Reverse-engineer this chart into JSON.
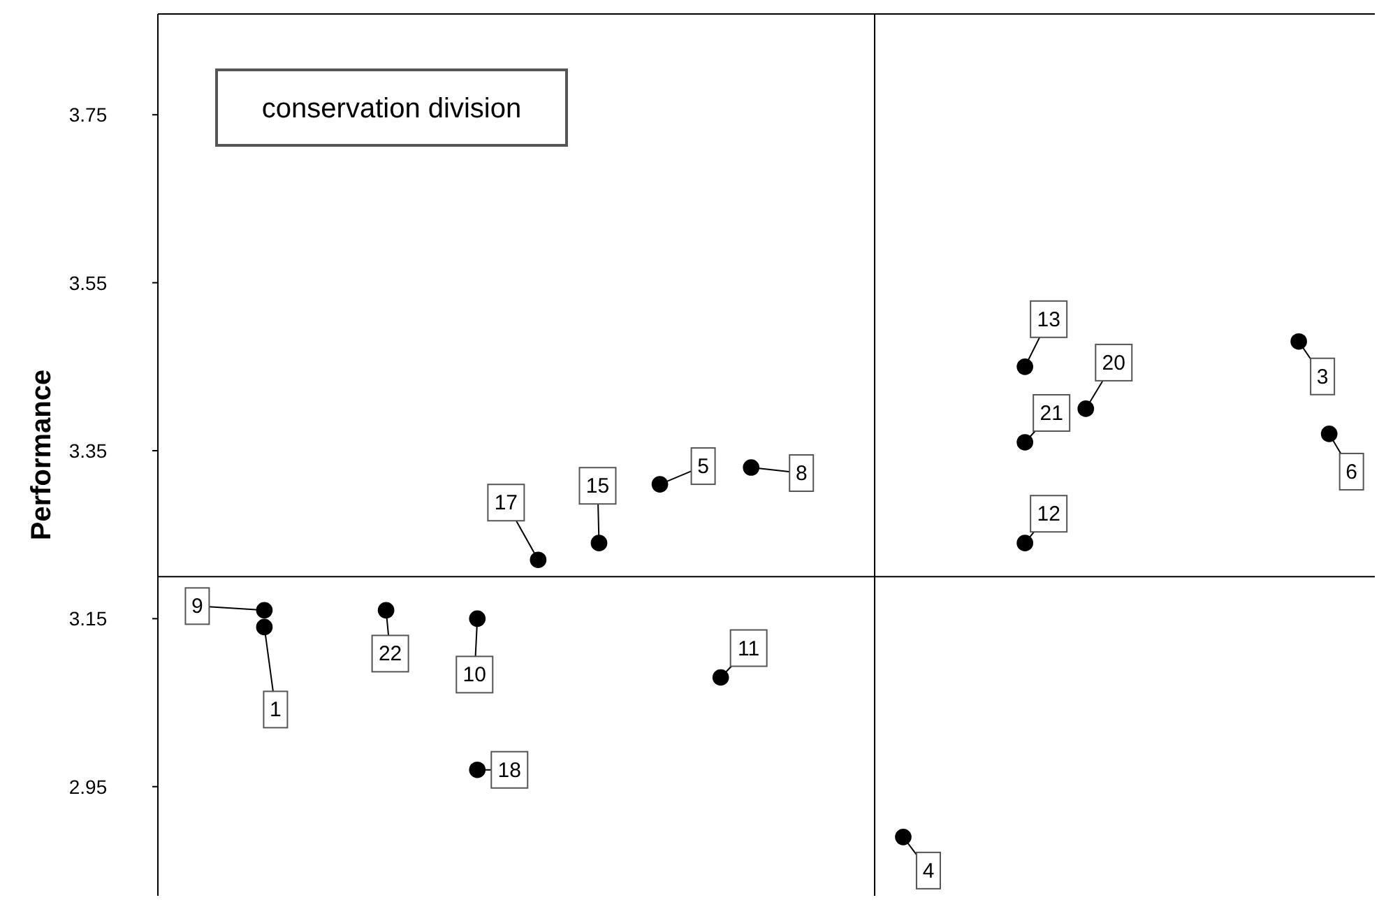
{
  "chart_data": {
    "type": "scatter",
    "ylabel": "Performance",
    "categories": [
      null,
      null,
      null,
      null,
      null,
      null,
      null,
      null,
      null,
      null,
      null,
      null,
      null,
      null,
      null,
      null,
      null,
      null,
      null,
      null,
      null,
      null,
      null,
      null,
      null,
      null,
      null,
      null,
      null,
      null,
      null,
      null,
      null,
      null,
      null,
      null,
      null,
      null,
      null,
      null
    ],
    "ylim": [
      2.82,
      3.87
    ],
    "yticks": [
      2.95,
      3.15,
      3.35,
      3.55,
      3.75
    ],
    "grid": false,
    "marker": "circle",
    "annotations": [
      "conservation division",
      "9",
      "1",
      "22",
      "10",
      "18",
      "11",
      "17",
      "15",
      "5",
      "8",
      "13",
      "21",
      "20",
      "12",
      "3",
      "6",
      "4"
    ],
    "ref_lines": [
      {
        "axis": "y",
        "value": 3.2,
        "color": "#000000"
      }
    ],
    "series": [
      {
        "color": "#000000",
        "values": [
          null,
          null,
          null,
          3.16,
          null,
          null,
          null,
          3.16,
          null,
          null,
          3.15,
          null,
          3.22,
          null,
          3.24,
          null,
          3.31,
          null,
          3.08,
          3.33,
          null,
          null,
          null,
          null,
          2.89,
          null,
          null,
          null,
          3.45,
          null,
          3.4,
          null,
          null,
          null,
          null,
          null,
          null,
          3.48,
          3.37,
          null
        ]
      },
      {
        "color": "#000000",
        "values": [
          null,
          null,
          null,
          3.14,
          null,
          null,
          null,
          null,
          null,
          null,
          2.97,
          null,
          null,
          null,
          null,
          null,
          null,
          null,
          null,
          null,
          null,
          null,
          null,
          null,
          null,
          null,
          null,
          null,
          3.36,
          null,
          null,
          null,
          null,
          null,
          null,
          null,
          null,
          null,
          null,
          null
        ]
      },
      {
        "color": "#000000",
        "values": [
          null,
          null,
          null,
          null,
          null,
          null,
          null,
          null,
          null,
          null,
          null,
          null,
          null,
          null,
          null,
          null,
          null,
          null,
          null,
          null,
          null,
          null,
          null,
          null,
          null,
          null,
          null,
          null,
          3.24,
          null,
          null,
          null,
          null,
          null,
          null,
          null,
          null,
          null,
          null,
          null
        ]
      }
    ]
  }
}
